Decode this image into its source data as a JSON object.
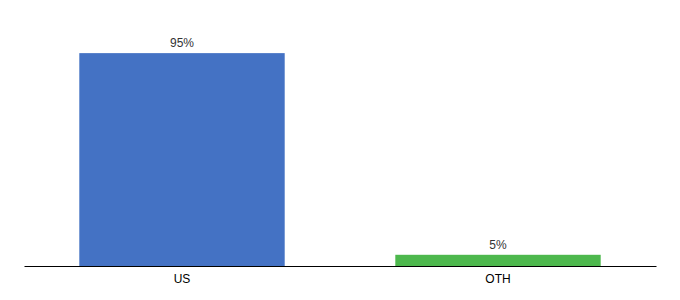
{
  "chart_data": {
    "type": "bar",
    "categories": [
      "US",
      "OTH"
    ],
    "values": [
      95,
      5
    ],
    "value_labels": [
      "95%",
      "5%"
    ],
    "colors": [
      "#4472c4",
      "#4db84d"
    ],
    "ylim": [
      0,
      108
    ],
    "grid": false,
    "data_labels": true,
    "tick_labels": "x"
  }
}
